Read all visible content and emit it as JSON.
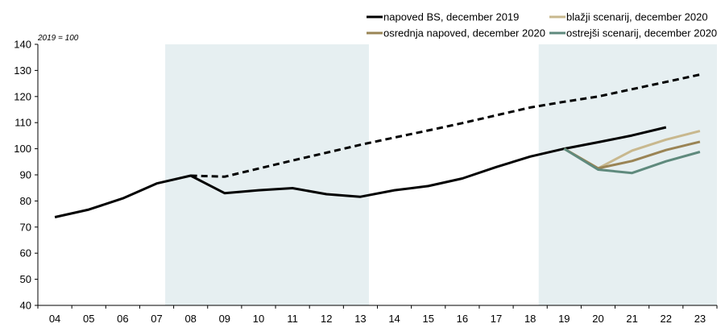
{
  "chart_data": {
    "type": "line",
    "unit_note": "2019 = 100",
    "ylim": [
      40,
      140
    ],
    "yticks": [
      "40",
      "50",
      "60",
      "70",
      "80",
      "90",
      "100",
      "110",
      "120",
      "130",
      "140"
    ],
    "categories": [
      "04",
      "05",
      "06",
      "07",
      "08",
      "09",
      "10",
      "11",
      "12",
      "13",
      "14",
      "15",
      "16",
      "17",
      "18",
      "19",
      "20",
      "21",
      "22",
      "23"
    ],
    "shaded_periods": [
      {
        "from": "08",
        "to": "13"
      },
      {
        "from": "19",
        "to": "23"
      }
    ],
    "series": [
      {
        "name": "napoved BS, december 2019",
        "color": "#000000",
        "style": "solid",
        "values": [
          73.8,
          76.7,
          81.0,
          86.7,
          89.7,
          83.0,
          84.1,
          84.9,
          82.6,
          81.6,
          84.1,
          85.7,
          88.6,
          93.0,
          97.0,
          100.0,
          102.5,
          105.1,
          108.2,
          null
        ]
      },
      {
        "name": "",
        "color": "#000000",
        "style": "dashed",
        "values": [
          null,
          null,
          null,
          null,
          89.7,
          89.3,
          92.4,
          95.5,
          98.5,
          101.5,
          104.3,
          107.0,
          109.8,
          112.8,
          115.8,
          118.0,
          120.0,
          122.8,
          125.6,
          128.4
        ]
      },
      {
        "name": "blažji scenarij, december 2020",
        "color": "#c8b88e",
        "style": "solid",
        "values": [
          null,
          null,
          null,
          null,
          null,
          null,
          null,
          null,
          null,
          null,
          null,
          null,
          null,
          null,
          null,
          100.0,
          92.5,
          99.3,
          103.5,
          106.8
        ]
      },
      {
        "name": "osrednja napoved, december 2020",
        "color": "#9a8455",
        "style": "solid",
        "values": [
          null,
          null,
          null,
          null,
          null,
          null,
          null,
          null,
          null,
          null,
          null,
          null,
          null,
          null,
          null,
          100.0,
          92.5,
          95.3,
          99.5,
          102.7
        ]
      },
      {
        "name": "ostrejši scenarij, december 2020",
        "color": "#5f8a7d",
        "style": "solid",
        "values": [
          null,
          null,
          null,
          null,
          null,
          null,
          null,
          null,
          null,
          null,
          null,
          null,
          null,
          null,
          null,
          100.0,
          92.0,
          90.7,
          95.2,
          98.8
        ]
      }
    ],
    "legend": [
      {
        "label": "napoved BS, december 2019",
        "color": "#000000"
      },
      {
        "label": "blažji scenarij, december 2020",
        "color": "#c8b88e"
      },
      {
        "label": "osrednja napoved, december 2020",
        "color": "#9a8455"
      },
      {
        "label": "ostrejši scenarij, december 2020",
        "color": "#5f8a7d"
      }
    ]
  }
}
